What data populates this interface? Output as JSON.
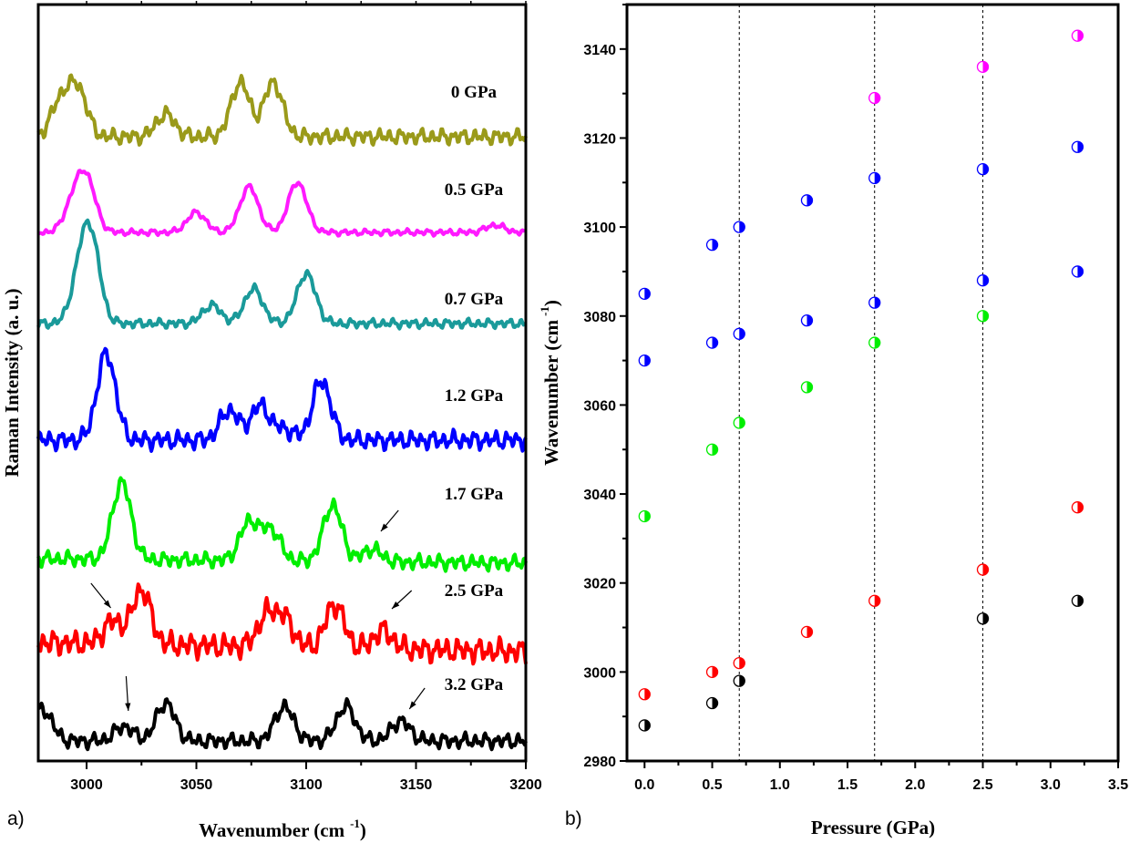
{
  "chart_data": [
    {
      "type": "line",
      "panel_label": "a)",
      "xlabel": "Wavenumber (cm",
      "xlabel_sup": "-1",
      "xlabel_end": ")",
      "ylabel": "Raman Intensity (a. u.)",
      "xlim": [
        2978,
        3200
      ],
      "ylim": [
        0,
        8.3
      ],
      "xticks": [
        3000,
        3050,
        3100,
        3150,
        3200
      ],
      "yticks": [],
      "grid": false,
      "series": [
        {
          "name": "0 GPa",
          "color": "#9a9a1a",
          "baseline": 6.85,
          "noise": 0.05,
          "tilt": 0,
          "peaks": [
            [
              2988,
              0.38
            ],
            [
              2996,
              0.52
            ],
            [
              3036,
              0.25
            ],
            [
              3070,
              0.6
            ],
            [
              3085,
              0.6
            ]
          ]
        },
        {
          "name": "0.5 GPa",
          "color": "#ff1aff",
          "baseline": 5.8,
          "noise": 0.02,
          "tilt": 0,
          "peaks": [
            [
              2994,
              0.3
            ],
            [
              3000,
              0.55
            ],
            [
              3050,
              0.22
            ],
            [
              3074,
              0.5
            ],
            [
              3096,
              0.55
            ],
            [
              3186,
              0.08
            ]
          ]
        },
        {
          "name": "0.7 GPa",
          "color": "#1a9a9a",
          "baseline": 4.8,
          "noise": 0.03,
          "tilt": 0,
          "peaks": [
            [
              2997,
              0.45
            ],
            [
              3002,
              0.85
            ],
            [
              3057,
              0.2
            ],
            [
              3076,
              0.38
            ],
            [
              3100,
              0.55
            ]
          ]
        },
        {
          "name": "1.2 GPa",
          "color": "#0000ff",
          "baseline": 3.52,
          "noise": 0.06,
          "tilt": 0,
          "peaks": [
            [
              3009,
              0.95
            ],
            [
              3065,
              0.33
            ],
            [
              3079,
              0.38
            ],
            [
              3090,
              0.12
            ],
            [
              3107,
              0.65
            ]
          ]
        },
        {
          "name": "1.7 GPa",
          "color": "#00ee00",
          "baseline": 2.22,
          "noise": 0.05,
          "tilt": -0.05,
          "peaks": [
            [
              3016,
              0.85
            ],
            [
              3074,
              0.42
            ],
            [
              3084,
              0.34
            ],
            [
              3112,
              0.62
            ],
            [
              3130,
              0.14
            ]
          ]
        },
        {
          "name": "2.5 GPa",
          "color": "#ff0000",
          "baseline": 1.3,
          "noise": 0.08,
          "tilt": -0.1,
          "peaks": [
            [
              3012,
              0.25
            ],
            [
              3025,
              0.6
            ],
            [
              3082,
              0.33
            ],
            [
              3090,
              0.3
            ],
            [
              3113,
              0.48
            ],
            [
              3135,
              0.2
            ]
          ]
        },
        {
          "name": "3.2 GPa",
          "color": "#000000",
          "baseline": 0.22,
          "noise": 0.05,
          "tilt": 0,
          "peaks": [
            [
              2980,
              0.35
            ],
            [
              3017,
              0.16
            ],
            [
              3036,
              0.42
            ],
            [
              3090,
              0.38
            ],
            [
              3118,
              0.38
            ],
            [
              3143,
              0.22
            ]
          ]
        }
      ],
      "annotations": [
        {
          "type": "arrow",
          "from": [
            3142,
            2.75
          ],
          "to": [
            3134,
            2.52
          ]
        },
        {
          "type": "arrow",
          "from": [
            3002,
            1.95
          ],
          "to": [
            3011,
            1.68
          ]
        },
        {
          "type": "arrow",
          "from": [
            3148,
            1.87
          ],
          "to": [
            3139,
            1.67
          ]
        },
        {
          "type": "arrow",
          "from": [
            3018,
            0.93
          ],
          "to": [
            3019,
            0.55
          ]
        },
        {
          "type": "arrow",
          "from": [
            3154,
            0.8
          ],
          "to": [
            3147,
            0.57
          ]
        }
      ]
    },
    {
      "type": "scatter",
      "panel_label": "b)",
      "xlabel": "Pressure (GPa)",
      "ylabel": "Wavenumber (cm",
      "ylabel_sup": "-1",
      "ylabel_end": ")",
      "xlim": [
        -0.13,
        3.5
      ],
      "ylim": [
        2980,
        3150
      ],
      "xticks": [
        "0.0",
        "0.5",
        "1.0",
        "1.5",
        "2.0",
        "2.5",
        "3.0",
        "3.5"
      ],
      "yticks": [
        "2980",
        "3000",
        "3020",
        "3040",
        "3060",
        "3080",
        "3100",
        "3120",
        "3140"
      ],
      "grid": false,
      "marker": "half-filled-circle",
      "vlines": [
        0.7,
        1.7,
        2.5
      ],
      "series": [
        {
          "color": "#000000",
          "points": [
            [
              0,
              2988
            ],
            [
              0.5,
              2993
            ],
            [
              0.7,
              2998
            ],
            [
              2.5,
              3012
            ],
            [
              3.2,
              3016
            ]
          ]
        },
        {
          "color": "#ff0000",
          "points": [
            [
              0,
              2995
            ],
            [
              0.5,
              3000
            ],
            [
              0.7,
              3002
            ],
            [
              1.2,
              3009
            ],
            [
              1.7,
              3016
            ],
            [
              2.5,
              3023
            ],
            [
              3.2,
              3037
            ]
          ]
        },
        {
          "color": "#00ee00",
          "points": [
            [
              0,
              3035
            ],
            [
              0.5,
              3050
            ],
            [
              0.7,
              3056
            ],
            [
              1.2,
              3064
            ],
            [
              1.7,
              3074
            ],
            [
              2.5,
              3080
            ]
          ]
        },
        {
          "color": "#0000ff",
          "points": [
            [
              0,
              3070
            ],
            [
              0.5,
              3074
            ],
            [
              0.7,
              3076
            ],
            [
              1.2,
              3079
            ],
            [
              1.7,
              3083
            ],
            [
              2.5,
              3088
            ],
            [
              3.2,
              3090
            ]
          ]
        },
        {
          "color": "#0000ff",
          "points": [
            [
              0,
              3085
            ],
            [
              0.5,
              3096
            ],
            [
              0.7,
              3100
            ],
            [
              1.2,
              3106
            ],
            [
              1.7,
              3111
            ],
            [
              2.5,
              3113
            ],
            [
              3.2,
              3118
            ]
          ]
        },
        {
          "color": "#ff00ff",
          "points": [
            [
              1.7,
              3129
            ],
            [
              2.5,
              3136
            ],
            [
              3.2,
              3143
            ]
          ]
        }
      ]
    }
  ]
}
